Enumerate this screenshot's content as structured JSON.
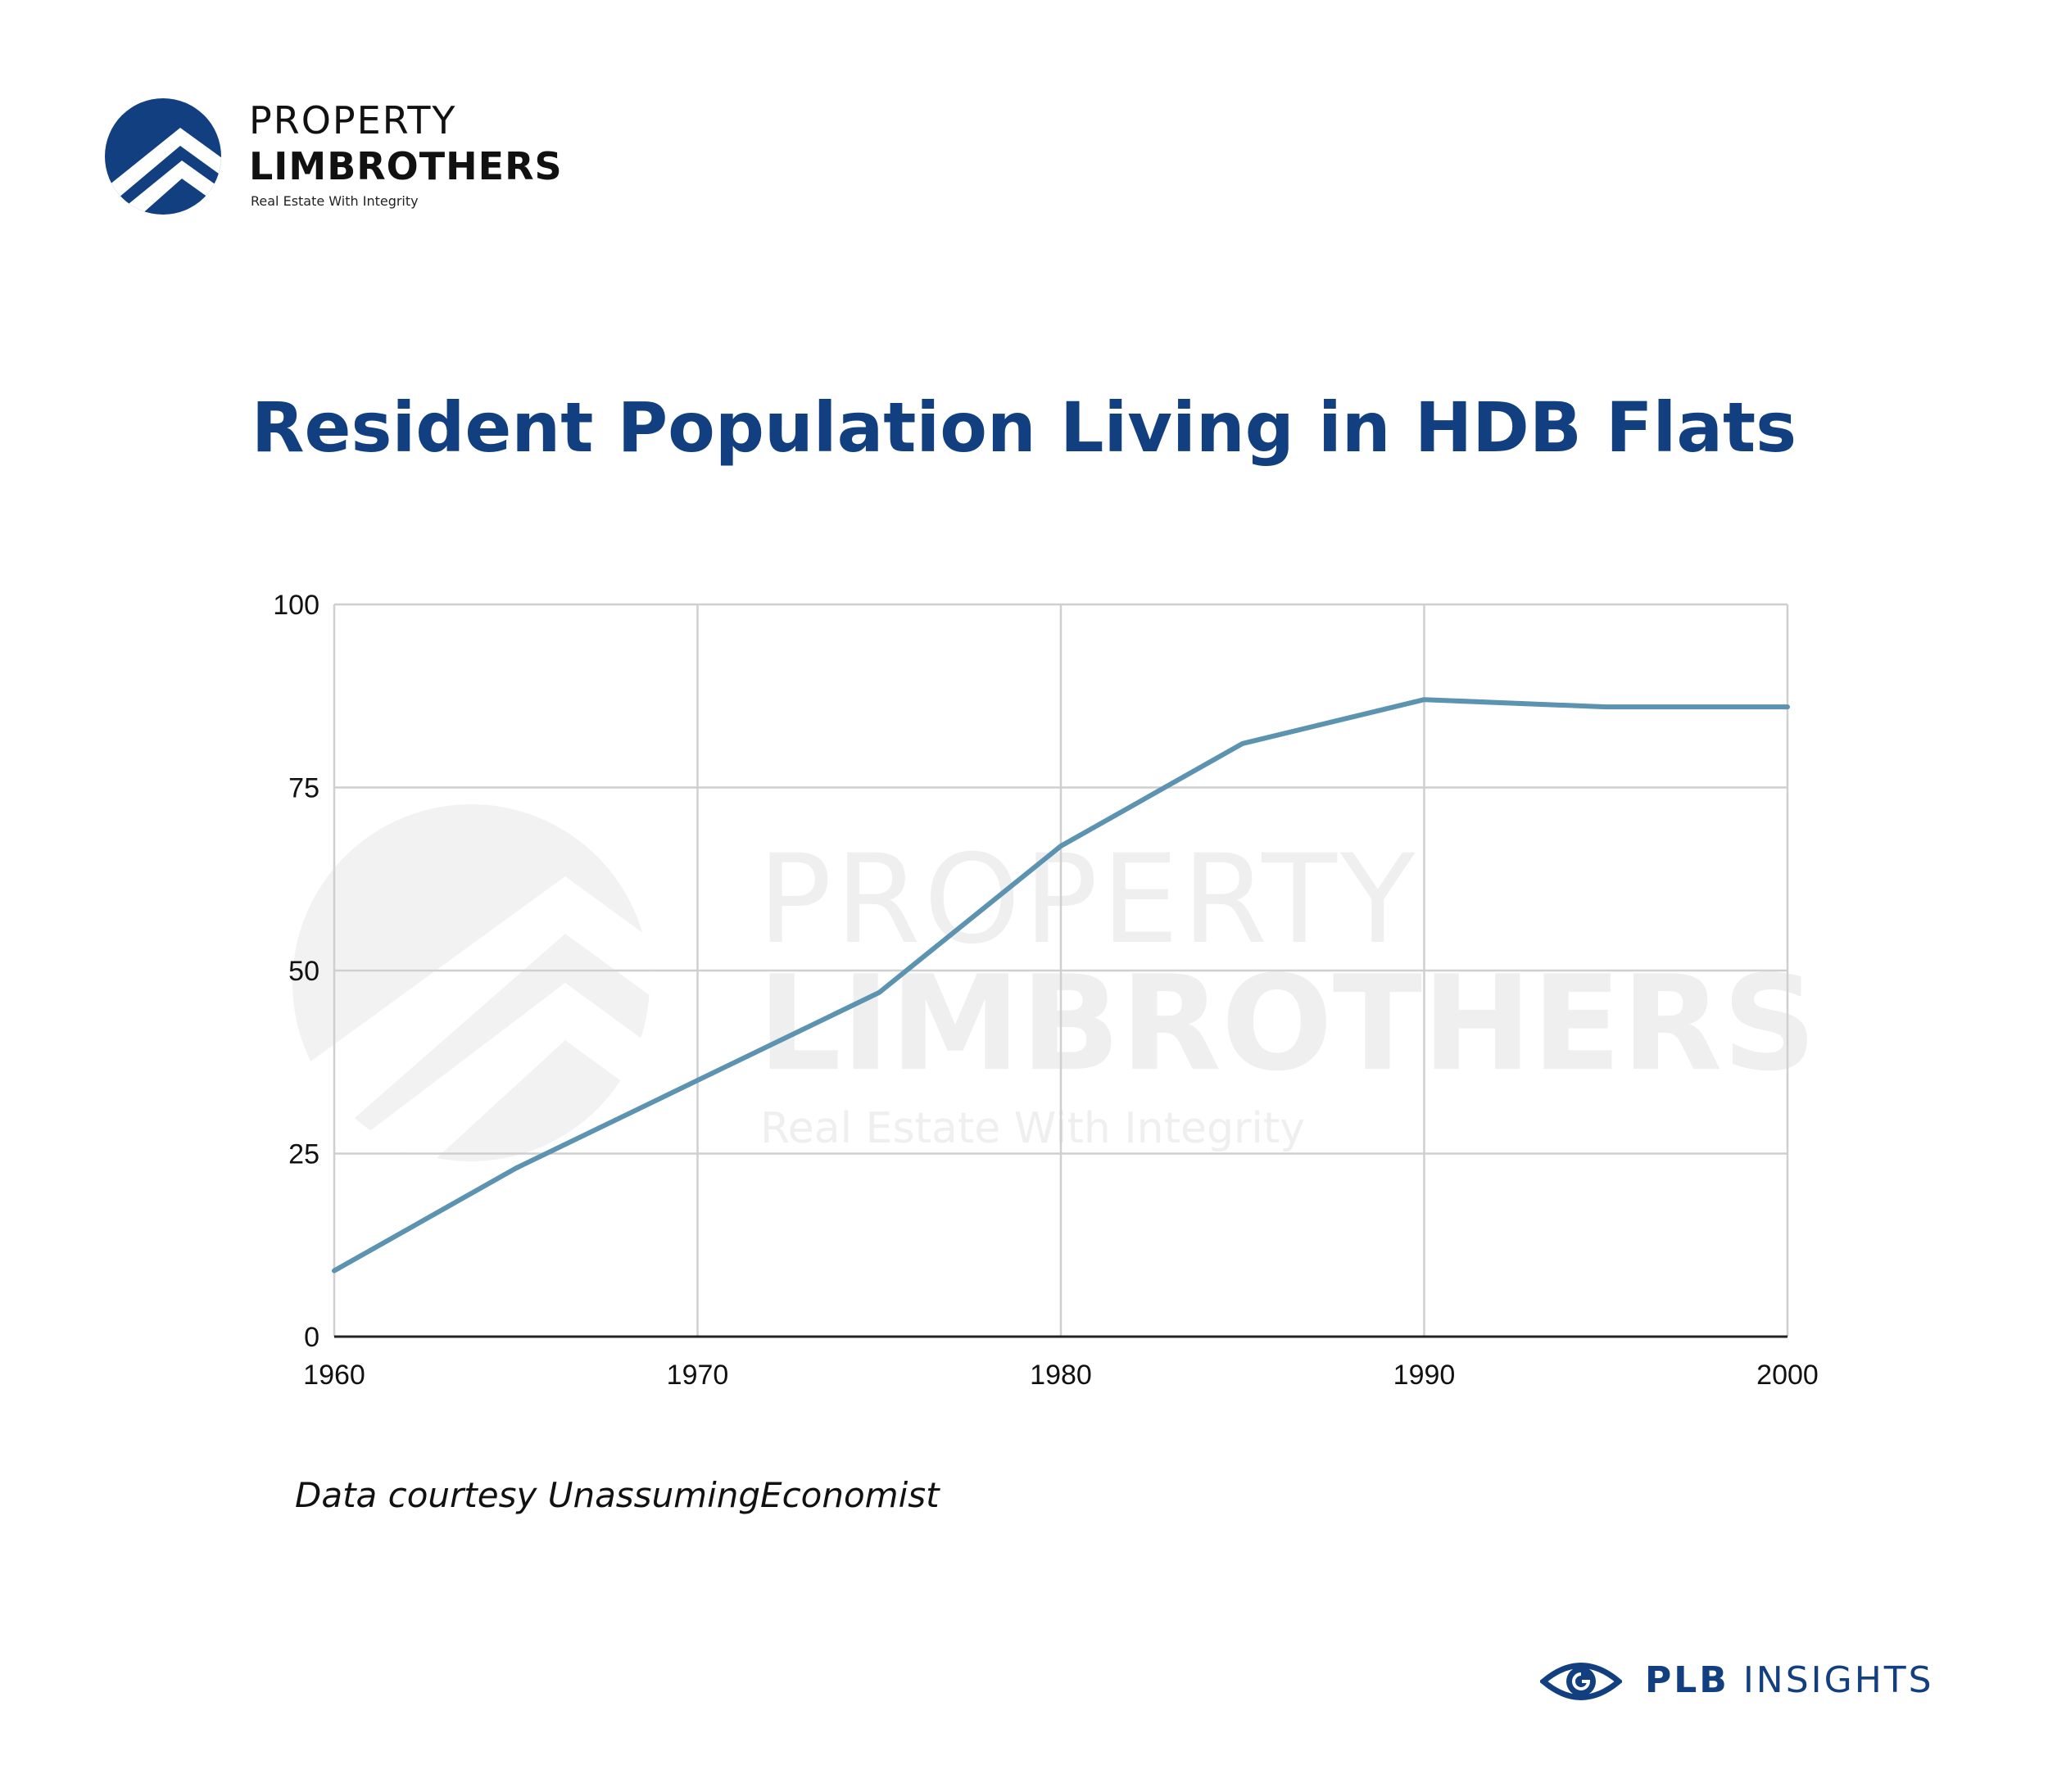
{
  "brand": {
    "line1": "PROPERTY",
    "line2": "LIMBROTHERS",
    "tagline": "Real Estate With Integrity",
    "color": "#123f80"
  },
  "footer": {
    "strong": "PLB",
    "rest": " INSIGHTS",
    "icon": "eye-icon"
  },
  "source_note": "Data courtesy UnassumingEconomist",
  "watermark": {
    "line1": "PROPERTY",
    "line2": "LIMBROTHERS",
    "line3": "Real Estate With Integrity"
  },
  "chart_data": {
    "type": "line",
    "title": "Resident Population Living in HDB Flats",
    "xlabel": "",
    "ylabel": "",
    "x": [
      1960,
      1965,
      1970,
      1975,
      1980,
      1985,
      1990,
      1995,
      2000
    ],
    "series": [
      {
        "values": [
          9,
          23,
          35,
          47,
          67,
          81,
          87,
          86,
          86
        ],
        "color": "#5b93b0"
      }
    ],
    "xlim": [
      1960,
      2000
    ],
    "ylim": [
      0,
      100
    ],
    "xticks": [
      1960,
      1970,
      1980,
      1990,
      2000
    ],
    "yticks": [
      0,
      25,
      50,
      75,
      100
    ],
    "grid": true,
    "legend": "none"
  }
}
